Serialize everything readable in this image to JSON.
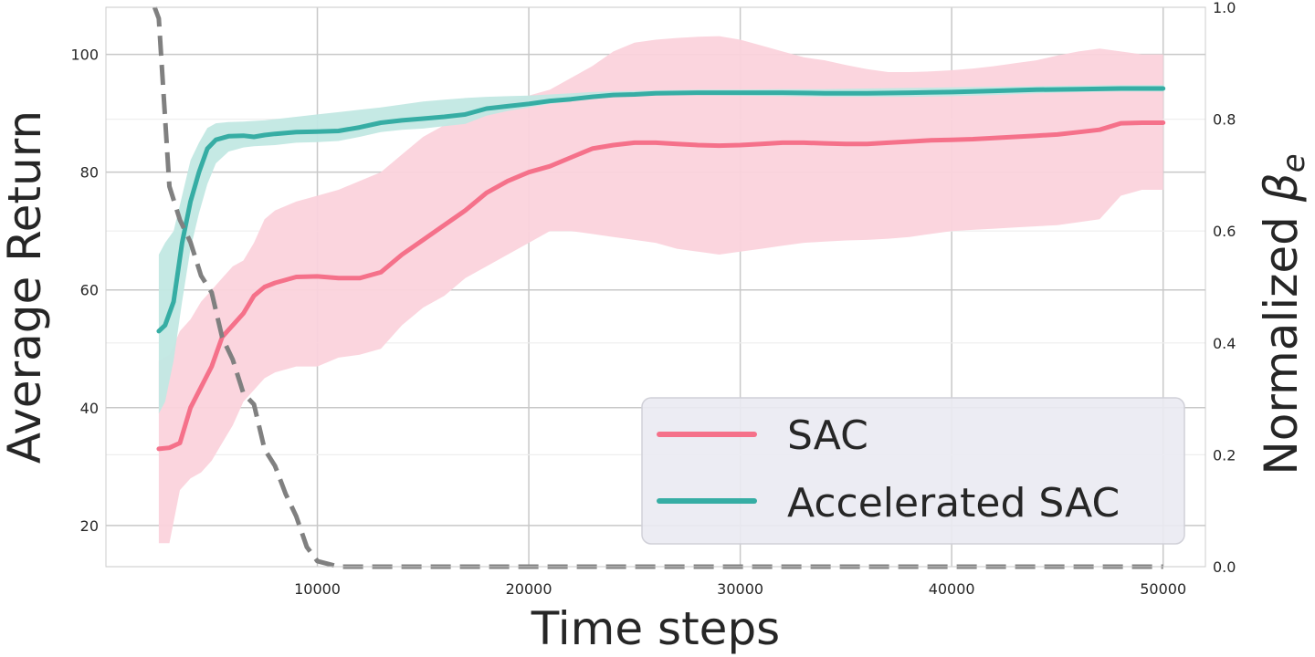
{
  "chart_data": {
    "type": "line",
    "xlabel": "Time steps",
    "ylabel": "Average Return",
    "y2label_text": "Normalized ",
    "y2label_symbol": "β",
    "y2label_subscript": "e",
    "xlim": [
      0,
      52000
    ],
    "ylim": [
      13,
      108
    ],
    "y2lim": [
      0,
      1
    ],
    "xticks": [
      10000,
      20000,
      30000,
      40000,
      50000
    ],
    "xtick_labels": [
      "10000",
      "20000",
      "30000",
      "40000",
      "50000"
    ],
    "yticks": [
      20,
      40,
      60,
      80,
      100
    ],
    "ytick_labels": [
      "20",
      "40",
      "60",
      "80",
      "100"
    ],
    "y2ticks": [
      0.0,
      0.2,
      0.4,
      0.6,
      0.8,
      1.0
    ],
    "y2tick_labels": [
      "0.0",
      "0.2",
      "0.4",
      "0.6",
      "0.8",
      "1.0"
    ],
    "grid": true,
    "legend_position": "lower-right",
    "colors": {
      "sac": "#f5718a",
      "accelerated": "#36ada4",
      "beta": "#808080",
      "sac_band": "#fbd3dc",
      "acc_band": "#c2e8e3",
      "grid": "#c8c8c8",
      "legend_bg": "#eaeaf2"
    },
    "series": [
      {
        "name": "SAC",
        "x": [
          2500,
          3000,
          3500,
          4000,
          4500,
          5000,
          5500,
          6000,
          6500,
          7000,
          7500,
          8000,
          9000,
          10000,
          11000,
          12000,
          13000,
          14000,
          15000,
          16000,
          17000,
          18000,
          19000,
          20000,
          21000,
          22000,
          23000,
          24000,
          25000,
          26000,
          27000,
          28000,
          29000,
          30000,
          31000,
          32000,
          33000,
          34000,
          35000,
          36000,
          37000,
          38000,
          39000,
          40000,
          41000,
          42000,
          43000,
          44000,
          45000,
          46000,
          47000,
          48000,
          49000,
          50000
        ],
        "y": [
          33,
          33.2,
          34,
          40,
          43.5,
          47,
          52,
          54,
          56,
          59,
          60.5,
          61.2,
          62.2,
          62.3,
          62,
          62,
          63,
          66,
          68.5,
          71,
          73.5,
          76.5,
          78.5,
          80,
          81,
          82.5,
          84,
          84.6,
          85,
          85,
          84.8,
          84.6,
          84.5,
          84.6,
          84.8,
          85,
          85,
          84.9,
          84.8,
          84.8,
          85,
          85.2,
          85.4,
          85.5,
          85.6,
          85.8,
          86,
          86.2,
          86.4,
          86.8,
          87.2,
          88.3,
          88.4,
          88.4
        ],
        "lower": [
          17,
          17,
          26,
          28,
          29,
          31,
          34,
          37,
          41,
          43,
          45,
          46,
          47,
          47,
          48.5,
          49,
          50,
          54,
          57,
          59,
          62,
          64,
          66,
          68,
          70,
          70,
          69.5,
          69,
          68.5,
          68,
          67,
          66.5,
          66,
          66.5,
          67,
          67.5,
          68,
          68.2,
          68.4,
          68.5,
          68.7,
          69,
          69.5,
          70,
          70.2,
          70.4,
          70.6,
          70.8,
          71,
          71.5,
          72,
          76,
          77,
          77
        ],
        "upper": [
          48,
          49,
          53,
          55,
          58,
          60,
          62,
          64,
          65,
          68,
          72,
          73.5,
          75,
          76,
          77,
          78.5,
          80,
          83,
          86,
          88,
          90,
          91,
          92,
          93,
          94,
          96,
          98,
          100.5,
          102,
          102.5,
          102.8,
          103,
          103.1,
          102.5,
          101.5,
          100.5,
          99.5,
          99,
          98.2,
          97.5,
          97,
          97,
          97.1,
          97.3,
          97.6,
          98,
          98.5,
          99,
          99.8,
          100.5,
          101,
          100.5,
          100,
          100
        ]
      },
      {
        "name": "Accelerated SAC",
        "x": [
          2500,
          2800,
          3200,
          3600,
          4000,
          4400,
          4800,
          5200,
          5800,
          6500,
          7000,
          7500,
          8000,
          9000,
          10000,
          11000,
          12000,
          13000,
          14000,
          15000,
          16000,
          17000,
          18000,
          19000,
          20000,
          21000,
          22000,
          23000,
          24000,
          25000,
          26000,
          28000,
          30000,
          32000,
          34000,
          36000,
          38000,
          40000,
          42000,
          44000,
          46000,
          48000,
          50000
        ],
        "y": [
          53,
          54,
          58,
          68,
          75,
          80,
          84,
          85.5,
          86.1,
          86.2,
          86,
          86.3,
          86.5,
          86.8,
          86.9,
          87,
          87.6,
          88.4,
          88.8,
          89.1,
          89.4,
          89.8,
          90.8,
          91.2,
          91.6,
          92.1,
          92.4,
          92.8,
          93.1,
          93.2,
          93.4,
          93.5,
          93.5,
          93.5,
          93.4,
          93.4,
          93.5,
          93.6,
          93.8,
          94,
          94.1,
          94.2,
          94.2
        ],
        "lower": [
          39,
          41,
          48,
          58,
          67,
          73,
          78,
          81.5,
          83.5,
          84.2,
          84.4,
          84.5,
          84.6,
          85,
          85.1,
          85.3,
          86,
          86.8,
          87.2,
          87.4,
          87.8,
          88.2,
          89.6,
          90.4,
          91,
          91.6,
          92,
          92.4,
          92.8,
          93,
          93.1,
          93.1,
          93,
          92.9,
          92.8,
          92.8,
          92.8,
          92.9,
          93.1,
          93.4,
          93.6,
          93.7,
          93.7
        ],
        "upper": [
          66,
          68,
          70,
          76,
          82,
          85,
          87.5,
          88.3,
          88.5,
          88.6,
          88.7,
          88.8,
          89,
          89.4,
          89.8,
          90.2,
          90.6,
          91,
          91.5,
          92,
          92.3,
          92.6,
          92.8,
          92.9,
          93,
          93.2,
          93.4,
          93.6,
          93.7,
          93.8,
          93.9,
          94,
          94,
          94.1,
          94.1,
          94.2,
          94.3,
          94.4,
          94.5,
          94.6,
          94.7,
          94.8,
          94.8
        ]
      },
      {
        "name": "",
        "axis": "right",
        "style": "dashed",
        "x": [
          2300,
          2500,
          3000,
          3500,
          4000,
          4500,
          5000,
          5500,
          6000,
          6500,
          7000,
          7500,
          8000,
          8500,
          9000,
          9500,
          10000,
          11000,
          20000,
          30000,
          40000,
          50000
        ],
        "y": [
          1.0,
          0.98,
          0.68,
          0.62,
          0.58,
          0.52,
          0.49,
          0.41,
          0.37,
          0.31,
          0.29,
          0.21,
          0.18,
          0.13,
          0.09,
          0.035,
          0.01,
          0.0,
          0.0,
          0.0,
          0.0,
          0.0
        ]
      }
    ]
  }
}
